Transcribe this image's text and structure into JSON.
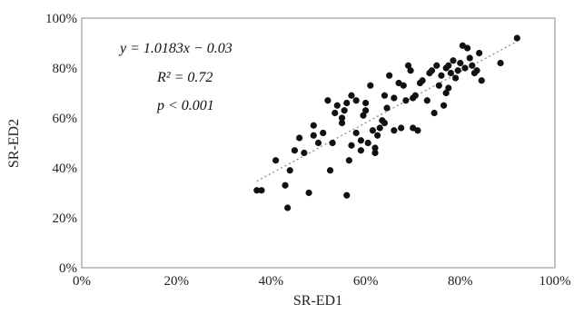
{
  "chart_data": {
    "type": "scatter",
    "xlabel": "SR-ED1",
    "ylabel": "SR-ED2",
    "xlim": [
      0,
      100
    ],
    "ylim": [
      0,
      100
    ],
    "x_ticks": [
      "0%",
      "20%",
      "40%",
      "60%",
      "80%",
      "100%"
    ],
    "y_ticks": [
      "0%",
      "20%",
      "40%",
      "60%",
      "80%",
      "100%"
    ],
    "grid": false,
    "trendline": {
      "style": "dotted",
      "slope": 1.0183,
      "intercept": -0.03,
      "x_range": [
        37,
        92
      ]
    },
    "annotations": [
      "y = 1.0183x − 0.03",
      "R² = 0.72",
      "p < 0.001"
    ],
    "points": [
      [
        37,
        31
      ],
      [
        38,
        31
      ],
      [
        41,
        43
      ],
      [
        43,
        33
      ],
      [
        43.5,
        24
      ],
      [
        44,
        39
      ],
      [
        45,
        47
      ],
      [
        46,
        52
      ],
      [
        47,
        46
      ],
      [
        48,
        30
      ],
      [
        49,
        53
      ],
      [
        49,
        57
      ],
      [
        50,
        50
      ],
      [
        51,
        54
      ],
      [
        52,
        67
      ],
      [
        52.5,
        39
      ],
      [
        53,
        50
      ],
      [
        53.5,
        62
      ],
      [
        54,
        65
      ],
      [
        55,
        58
      ],
      [
        55,
        60
      ],
      [
        55.5,
        63
      ],
      [
        56,
        66
      ],
      [
        56,
        29
      ],
      [
        56.5,
        43
      ],
      [
        57,
        49
      ],
      [
        57,
        69
      ],
      [
        58,
        67
      ],
      [
        58,
        54
      ],
      [
        59,
        51
      ],
      [
        59,
        47
      ],
      [
        59.5,
        61
      ],
      [
        60,
        66
      ],
      [
        60,
        63
      ],
      [
        60.5,
        50
      ],
      [
        61,
        73
      ],
      [
        61.5,
        55
      ],
      [
        62,
        48
      ],
      [
        62,
        46
      ],
      [
        62.5,
        53
      ],
      [
        63,
        56
      ],
      [
        63.5,
        59
      ],
      [
        64,
        58
      ],
      [
        64,
        69
      ],
      [
        64.5,
        64
      ],
      [
        65,
        77
      ],
      [
        66,
        68
      ],
      [
        66,
        55
      ],
      [
        67,
        74
      ],
      [
        67.5,
        56
      ],
      [
        68,
        73
      ],
      [
        68.5,
        67
      ],
      [
        69,
        81
      ],
      [
        69.5,
        79
      ],
      [
        70,
        56
      ],
      [
        70,
        68
      ],
      [
        70.5,
        69
      ],
      [
        71,
        55
      ],
      [
        71.5,
        74
      ],
      [
        72,
        75
      ],
      [
        73,
        67
      ],
      [
        73.5,
        78
      ],
      [
        74,
        79
      ],
      [
        74.5,
        62
      ],
      [
        75,
        81
      ],
      [
        75.5,
        73
      ],
      [
        76,
        77
      ],
      [
        76.5,
        65
      ],
      [
        77,
        80
      ],
      [
        77,
        70
      ],
      [
        77.5,
        72
      ],
      [
        77.5,
        81
      ],
      [
        78,
        78
      ],
      [
        78.5,
        83
      ],
      [
        79,
        76
      ],
      [
        79.5,
        79
      ],
      [
        80,
        82
      ],
      [
        80.5,
        89
      ],
      [
        81,
        80
      ],
      [
        81.5,
        88
      ],
      [
        82,
        84
      ],
      [
        82.5,
        81
      ],
      [
        83,
        78
      ],
      [
        83.5,
        79
      ],
      [
        84,
        86
      ],
      [
        84.5,
        75
      ],
      [
        88.5,
        82
      ],
      [
        92,
        92
      ]
    ]
  }
}
